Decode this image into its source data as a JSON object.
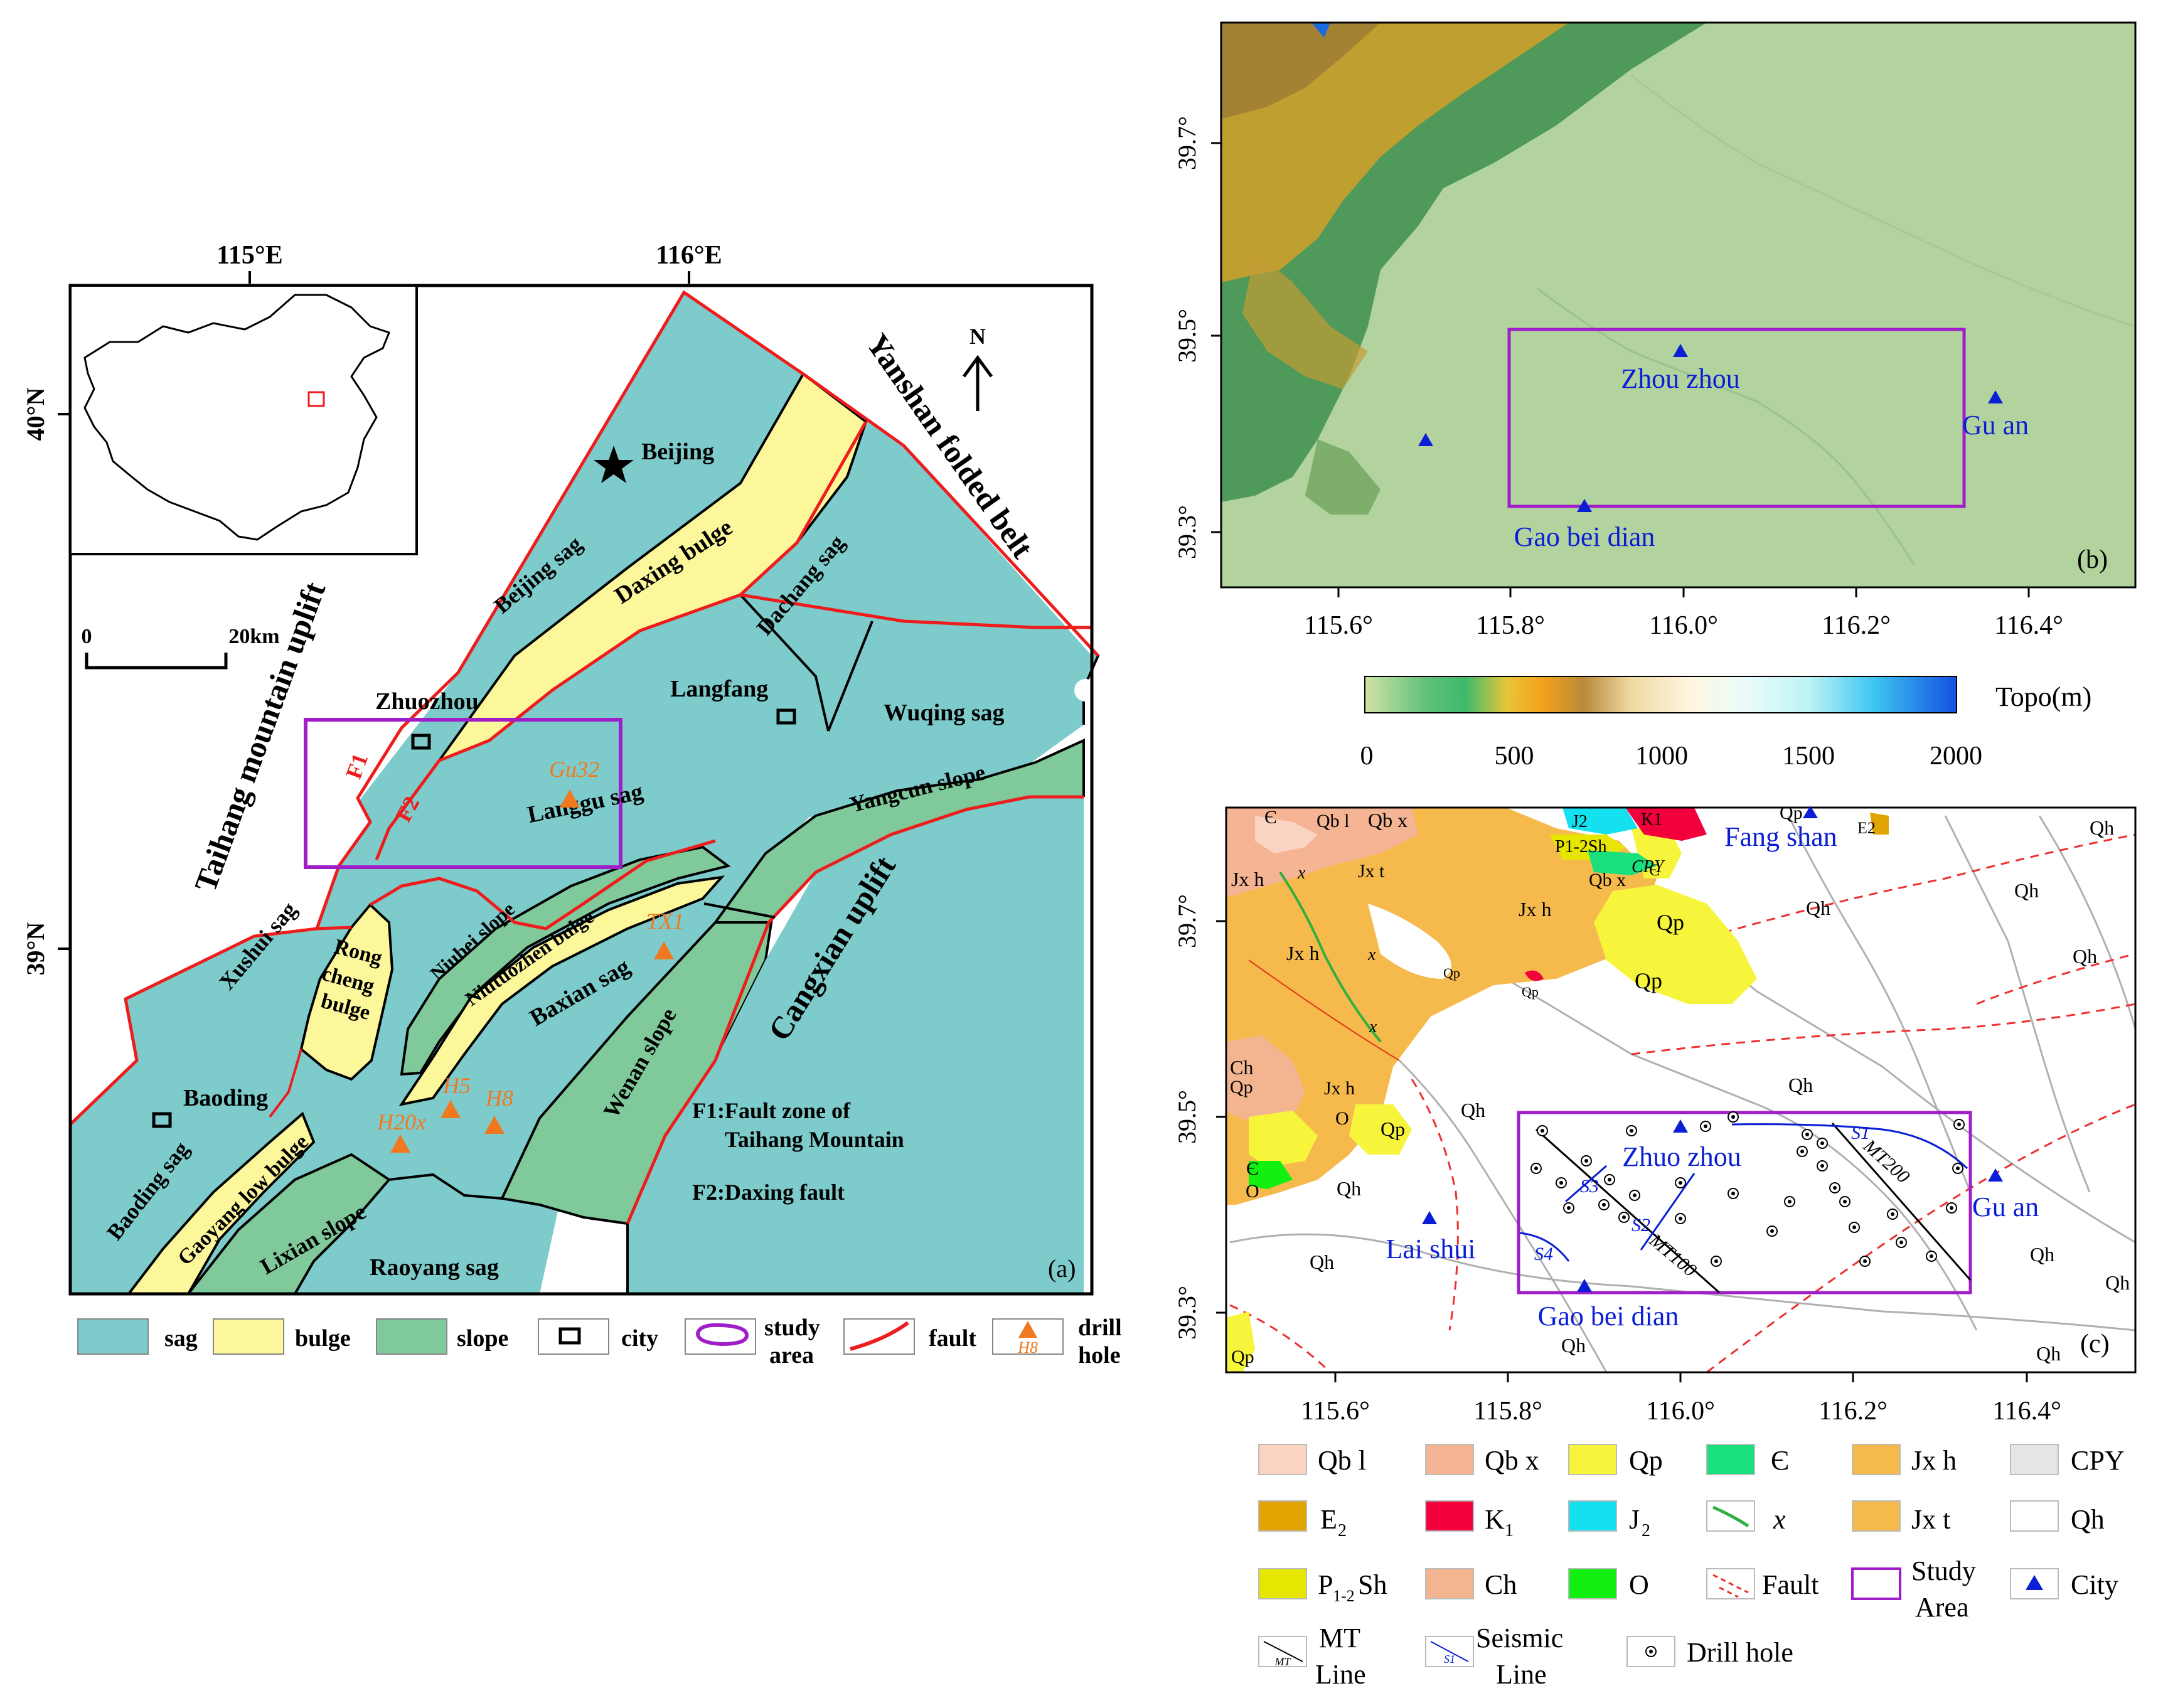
{
  "panel_a": {
    "lon_ticks": [
      "115°E",
      "116°E"
    ],
    "lat_ticks": [
      "40°N",
      "39°N"
    ],
    "north": "N",
    "scale_start": "0",
    "scale_end": "20km",
    "panel_label": "(a)",
    "regions": {
      "taihang": "Taihang mountain uplift",
      "yanshan": "Yanshan folded belt",
      "cangxian": "Cangxian uplift",
      "beijing_sag": "Beijing sag",
      "daxing_bulge": "Daxing bulge",
      "dachang_sag": "Dachang sag",
      "wuqing_sag": "Wuqing sag",
      "langgu_sag": "Langgu sag",
      "yangcun_slope": "Yangcun slope",
      "xushui_sag": "Xushui sag",
      "rong_1": "Rong",
      "rong_2": "cheng",
      "rong_3": "bulge",
      "niubei_slope": "Niubei slope",
      "niutuozhen_bulge": "Niutuozhen bulge",
      "baxian_sag": "Baxian sag",
      "wenan_slope": "Wenan slope",
      "baoding_sag": "Baoding sag",
      "gaoyang": "Gaoyang low bulge",
      "lixian": "Lixian slope",
      "raoyang": "Raoyang sag"
    },
    "cities": {
      "beijing": "Beijing",
      "zhuozhou": "Zhuozhou",
      "langfang": "Langfang",
      "baoding": "Baoding"
    },
    "faults": {
      "f1": "F1",
      "f2": "F2"
    },
    "drill_holes": {
      "gu32": "Gu32",
      "tx1": "TX1",
      "h5": "H5",
      "h8": "H8",
      "h20x": "H20x"
    },
    "notes": {
      "f1_line1": "F1:Fault zone of",
      "f1_line2": "Taihang Mountain",
      "f2": "F2:Daxing fault"
    },
    "legend": {
      "sag": "sag",
      "bulge": "bulge",
      "slope": "slope",
      "city": "city",
      "study_1": "study",
      "study_2": "area",
      "fault": "fault",
      "drill_1": "drill",
      "drill_2": "hole",
      "drill_sample": "H8"
    },
    "colors": {
      "sag": "#7ecbcb",
      "bulge": "#fcf79b",
      "slope": "#7fc99a",
      "fault": "#ee1c1c",
      "study": "#a01ec8",
      "drill": "#f07920"
    }
  },
  "panel_b": {
    "lat_ticks": [
      "39.7°",
      "39.5°",
      "39.3°"
    ],
    "lon_ticks": [
      "115.6°",
      "115.8°",
      "116.0°",
      "116.2°",
      "116.4°"
    ],
    "cities": {
      "zhouzhou": "Zhou zhou",
      "guan": "Gu an",
      "gaobeidian": "Gao bei dian"
    },
    "panel_label": "(b)",
    "colorbar_title": "Topo(m)",
    "colorbar_ticks": [
      "0",
      "500",
      "1000",
      "1500",
      "2000"
    ]
  },
  "panel_c": {
    "lat_ticks": [
      "39.7°",
      "39.5°",
      "39.3°"
    ],
    "lon_ticks": [
      "115.6°",
      "115.8°",
      "116.0°",
      "116.2°",
      "116.4°"
    ],
    "panel_label": "(c)",
    "cities": {
      "fangshan": "Fang shan",
      "zhuozhou": "Zhuo zhou",
      "guan": "Gu an",
      "laishui": "Lai shui",
      "gaobeidian": "Gao bei dian"
    },
    "lines": {
      "mt100": "MT100",
      "mt200": "MT200",
      "s1": "S1",
      "s2": "S2",
      "s3": "S3",
      "s4": "S4"
    },
    "units": {
      "qbl": "Qb l",
      "qbx": "Qb x",
      "jxh": "Jx h",
      "jxt": "Jx t",
      "qp": "Qp",
      "qh": "Qh",
      "ch": "Ch",
      "o": "O",
      "cambrian": "Є",
      "j2": "J2",
      "k1": "K1",
      "e2": "E2",
      "psh": "P1-2Sh",
      "cpy": "CPY",
      "x": "x"
    },
    "legend": {
      "qbl": "Qb l",
      "qbx": "Qb x",
      "qp": "Qp",
      "cambrian": "Є",
      "jxh": "Jx h",
      "cpy": "CPY",
      "e2": "E",
      "e2_sub": "2",
      "k1": "K",
      "k1_sub": "1",
      "j2": "J",
      "j2_sub": "2",
      "x": "x",
      "jxt": "Jx t",
      "qh": "Qh",
      "psh": "P",
      "psh_sub": "1-2",
      "psh_tail": "Sh",
      "ch": "Ch",
      "o": "O",
      "fault": "Fault",
      "study_1": "Study",
      "study_2": "Area",
      "city": "City",
      "mt_1": "MT",
      "mt_2": "Line",
      "mt_sample": "MT",
      "seis_1": "Seismic",
      "seis_2": "Line",
      "seis_sample": "S1",
      "drill": "Drill hole"
    },
    "colors": {
      "qbl": "#fbd3c3",
      "qbx": "#f5b493",
      "qp": "#f7f53b",
      "cambrian": "#19e07d",
      "jxh": "#f6b94c",
      "cpy": "#e5e5e5",
      "e2": "#e1a400",
      "k1": "#f2003c",
      "j2": "#14e0f0",
      "psh": "#e6e600",
      "ch": "#f2b590",
      "o": "#12f012",
      "city": "#0a1ed6"
    }
  }
}
